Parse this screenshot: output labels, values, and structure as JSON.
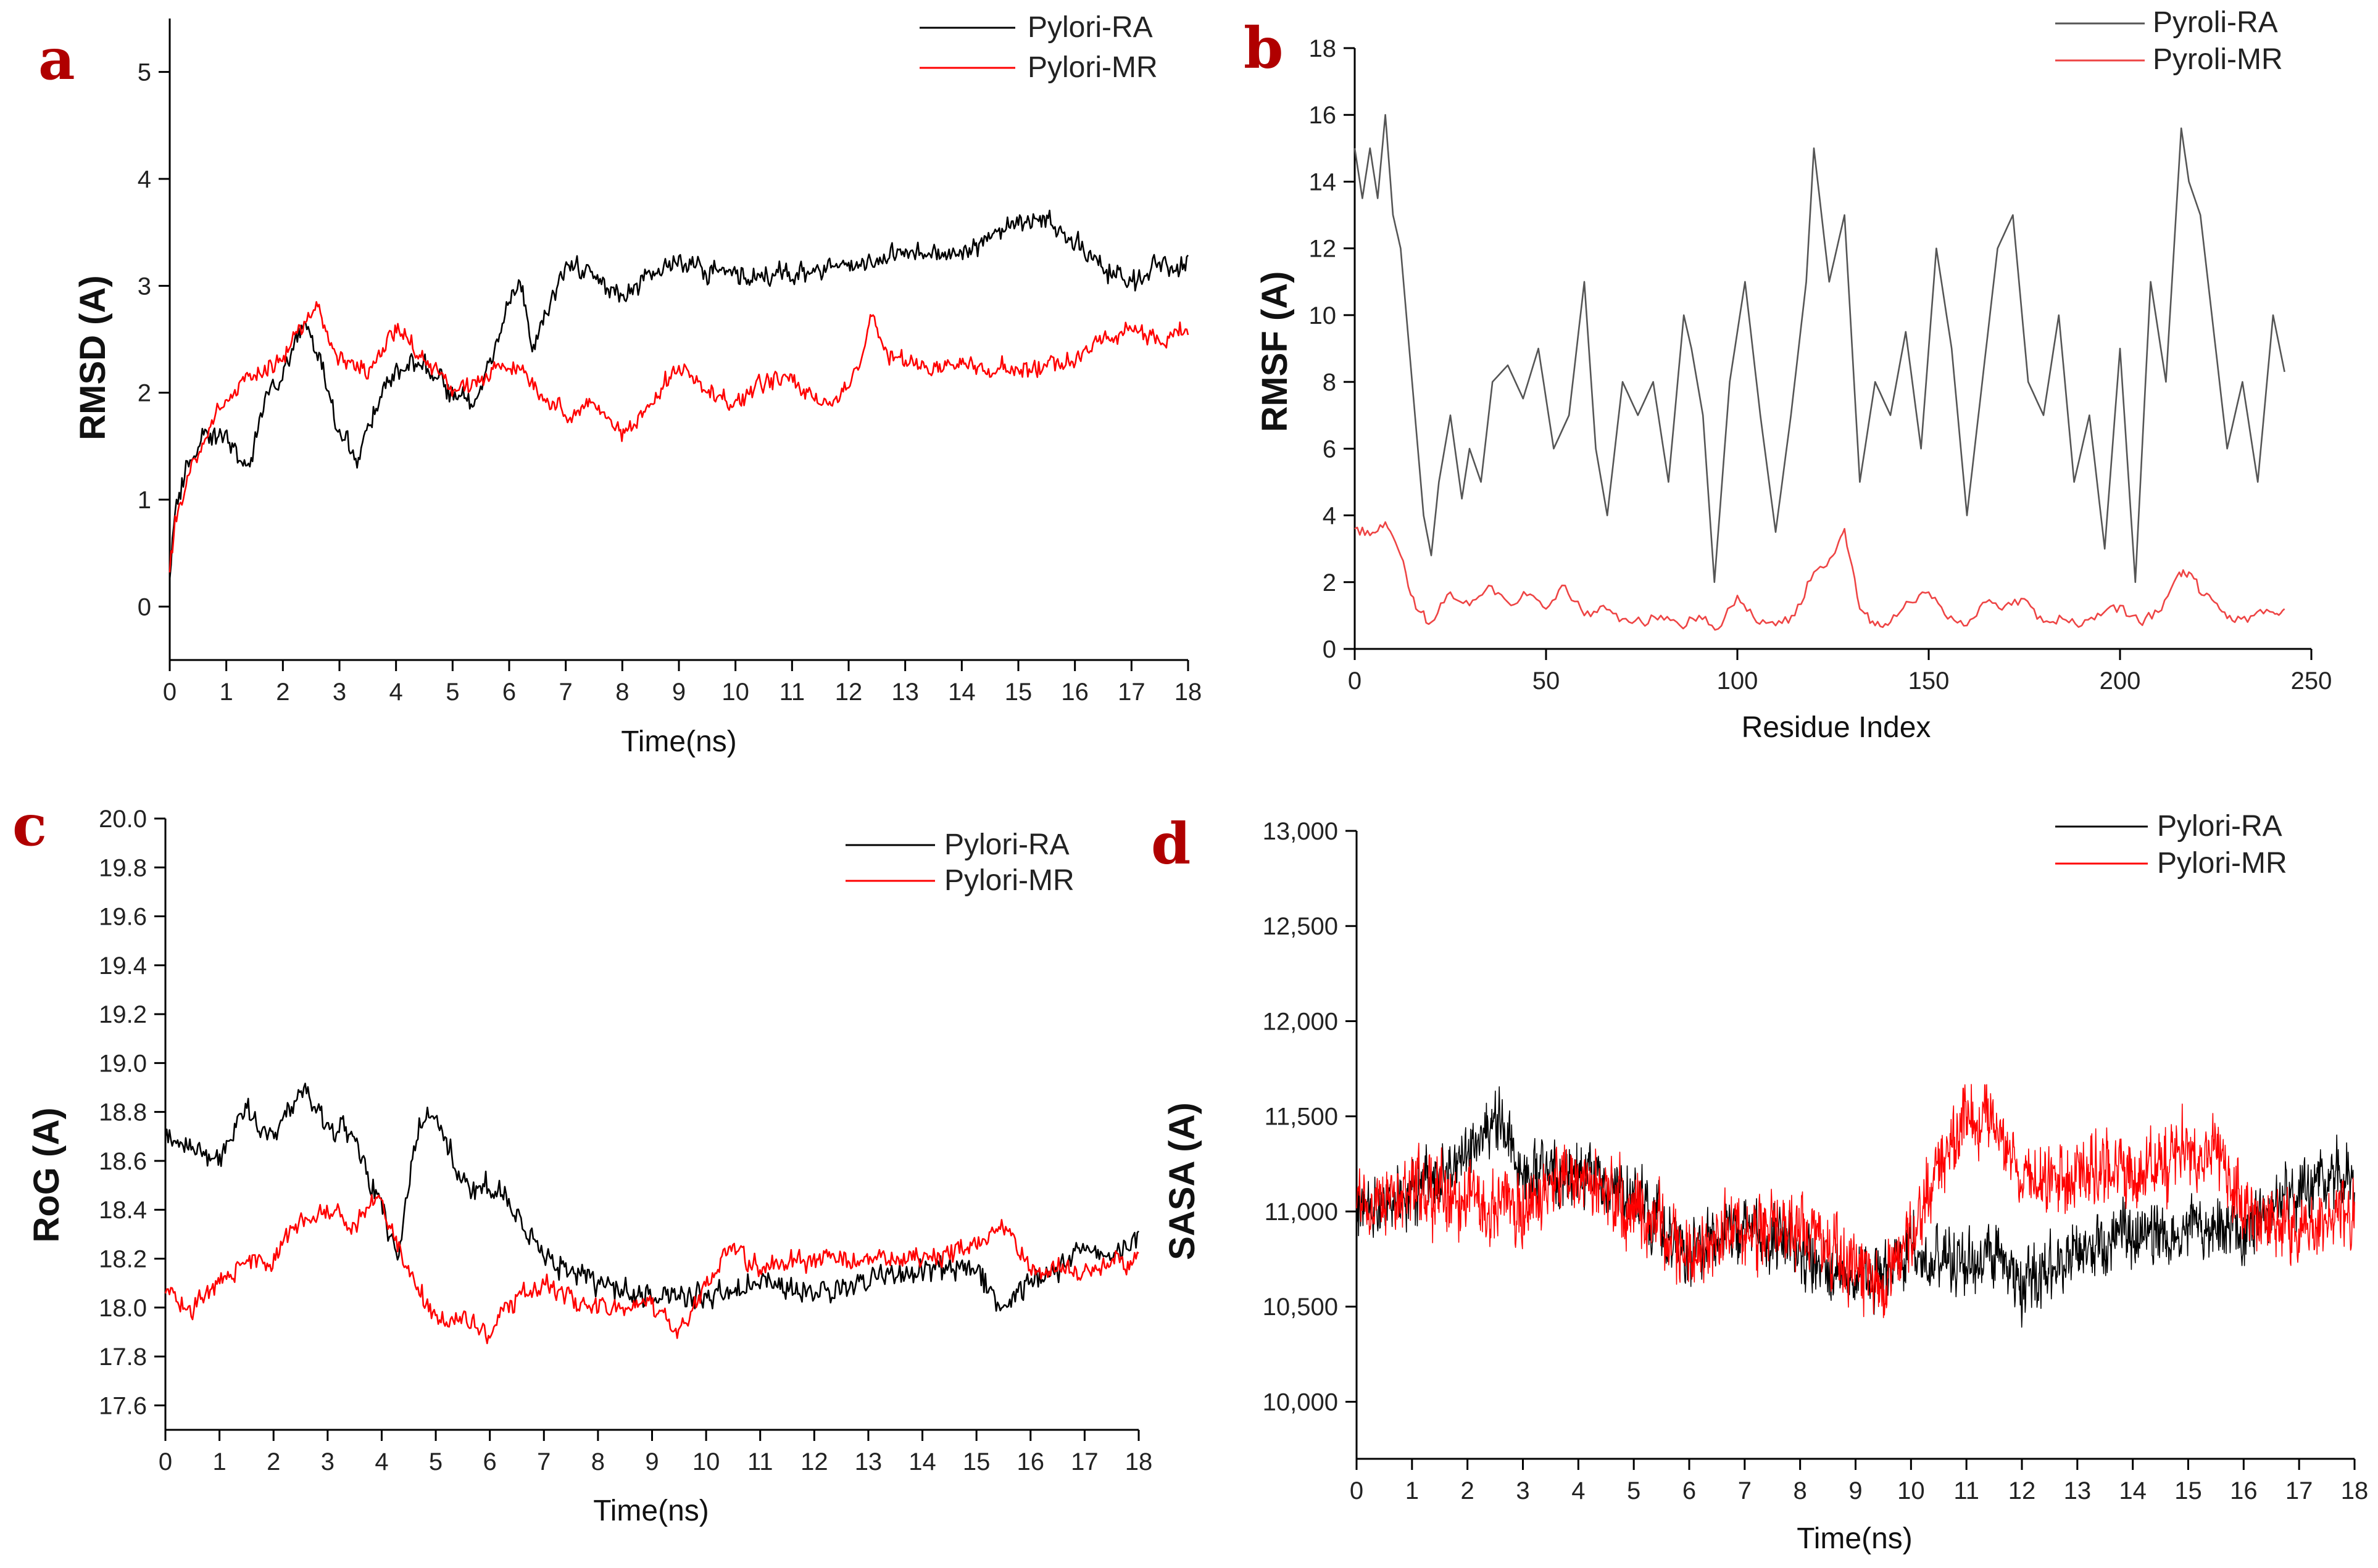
{
  "colors": {
    "ra": "#000000",
    "mr": "#ff0000",
    "ra_light": "#555555",
    "mr_light": "#ee4444",
    "panel_letter": "#b00000"
  },
  "chart_data": [
    {
      "id": "a",
      "type": "line",
      "panel_letter": "a",
      "title": "",
      "xlabel": "Time(ns)",
      "ylabel": "RMSD (A)",
      "xlim": [
        0,
        18
      ],
      "ylim": [
        -0.5,
        5.5
      ],
      "x_ticks": [
        "0",
        "1",
        "2",
        "3",
        "4",
        "5",
        "6",
        "7",
        "8",
        "9",
        "10",
        "11",
        "12",
        "13",
        "14",
        "15",
        "16",
        "17",
        "18"
      ],
      "y_ticks": [
        "0",
        "1",
        "2",
        "3",
        "4",
        "5"
      ],
      "legend": [
        "Pylori-RA",
        "Pylori-MR"
      ],
      "series": [
        {
          "name": "Pylori-RA",
          "color": "#000000",
          "noise": 0.12,
          "seed": 11,
          "x": [
            0,
            0.1,
            0.3,
            0.6,
            1,
            1.4,
            1.7,
            2,
            2.4,
            2.7,
            3,
            3.3,
            3.6,
            4,
            4.4,
            5,
            5.4,
            5.7,
            6,
            6.2,
            6.4,
            6.7,
            7,
            7.5,
            8,
            8.5,
            9,
            10,
            11,
            12,
            13,
            14,
            15,
            15.5,
            16,
            16.5,
            17,
            17.5,
            18
          ],
          "y": [
            0.3,
            0.9,
            1.3,
            1.6,
            1.6,
            1.3,
            2.0,
            2.2,
            2.7,
            2.2,
            1.6,
            1.4,
            1.8,
            2.2,
            2.3,
            2.0,
            1.9,
            2.3,
            2.8,
            3.1,
            2.4,
            2.8,
            3.2,
            3.1,
            2.9,
            3.1,
            3.2,
            3.1,
            3.1,
            3.2,
            3.3,
            3.3,
            3.6,
            3.6,
            3.4,
            3.2,
            3.0,
            3.2,
            3.2
          ]
        },
        {
          "name": "Pylori-MR",
          "color": "#ff0000",
          "noise": 0.1,
          "seed": 23,
          "x": [
            0,
            0.1,
            0.4,
            0.8,
            1.2,
            1.6,
            2,
            2.4,
            2.6,
            3,
            3.5,
            4,
            4.4,
            5,
            5.5,
            6,
            6.5,
            7,
            7.5,
            8,
            8.5,
            9,
            9.5,
            10,
            10.5,
            11,
            11.5,
            12,
            12.4,
            12.8,
            13.5,
            14,
            15,
            16,
            16.5,
            17,
            17.5,
            18
          ],
          "y": [
            0.3,
            0.8,
            1.3,
            1.8,
            2.0,
            2.2,
            2.3,
            2.7,
            2.8,
            2.3,
            2.2,
            2.6,
            2.4,
            2.0,
            2.1,
            2.3,
            2.0,
            1.8,
            1.9,
            1.6,
            1.9,
            2.3,
            2.0,
            1.9,
            2.1,
            2.1,
            1.9,
            2.0,
            2.7,
            2.3,
            2.2,
            2.3,
            2.2,
            2.3,
            2.5,
            2.6,
            2.5,
            2.6
          ]
        }
      ]
    },
    {
      "id": "b",
      "type": "line",
      "panel_letter": "b",
      "title": "",
      "xlabel": "Residue Index",
      "ylabel": "RMSF (A)",
      "xlim": [
        0,
        250
      ],
      "ylim": [
        0,
        18
      ],
      "x_ticks": [
        "0",
        "50",
        "100",
        "150",
        "200",
        "250"
      ],
      "y_ticks": [
        "0",
        "2",
        "4",
        "6",
        "8",
        "10",
        "12",
        "14",
        "16",
        "18"
      ],
      "legend": [
        "Pyroli-RA",
        "Pyroli-MR"
      ],
      "series": [
        {
          "name": "Pyroli-RA",
          "color": "#555555",
          "noise": 0,
          "seed": 0,
          "x": [
            0,
            2,
            4,
            6,
            8,
            10,
            12,
            15,
            18,
            20,
            22,
            25,
            28,
            30,
            33,
            36,
            40,
            44,
            48,
            52,
            56,
            60,
            63,
            66,
            70,
            74,
            78,
            82,
            86,
            88,
            91,
            94,
            98,
            102,
            106,
            110,
            114,
            118,
            120,
            124,
            128,
            132,
            136,
            140,
            144,
            148,
            152,
            156,
            160,
            164,
            168,
            172,
            176,
            180,
            184,
            188,
            192,
            196,
            200,
            204,
            208,
            212,
            216,
            218,
            221,
            224,
            228,
            232,
            236,
            240,
            243
          ],
          "y": [
            15,
            13.5,
            15,
            13.5,
            16,
            13,
            12,
            8,
            4,
            2.8,
            5,
            7,
            4.5,
            6,
            5,
            8,
            8.5,
            7.5,
            9,
            6,
            7,
            11,
            6,
            4,
            8,
            7,
            8,
            5,
            10,
            9,
            7,
            2,
            8,
            11,
            7,
            3.5,
            7,
            11,
            15,
            11,
            13,
            5,
            8,
            7,
            9.5,
            6,
            12,
            9,
            4,
            8,
            12,
            13,
            8,
            7,
            10,
            5,
            7,
            3,
            9,
            2,
            11,
            8,
            15.6,
            14,
            13,
            10,
            6,
            8,
            5,
            10,
            8.3
          ]
        },
        {
          "name": "Pyroli-MR",
          "color": "#ee4444",
          "noise": 0.15,
          "seed": 37,
          "x": [
            0,
            4,
            8,
            12,
            16,
            20,
            25,
            30,
            35,
            40,
            45,
            50,
            55,
            60,
            65,
            70,
            75,
            80,
            85,
            90,
            95,
            100,
            105,
            110,
            115,
            120,
            125,
            128,
            132,
            136,
            140,
            145,
            150,
            155,
            160,
            165,
            170,
            175,
            180,
            185,
            190,
            195,
            200,
            205,
            210,
            215,
            218,
            222,
            226,
            230,
            235,
            240,
            243
          ],
          "y": [
            3.6,
            3.4,
            3.8,
            2.8,
            1.2,
            0.8,
            1.7,
            1.3,
            1.9,
            1.4,
            1.6,
            1.2,
            1.9,
            1.0,
            1.3,
            0.9,
            0.8,
            1.0,
            0.7,
            1.0,
            0.6,
            1.6,
            0.8,
            0.7,
            1.0,
            2.3,
            2.8,
            3.6,
            1.2,
            0.7,
            0.8,
            1.4,
            1.7,
            0.9,
            0.7,
            1.4,
            1.3,
            1.5,
            0.8,
            0.9,
            0.7,
            1.0,
            1.3,
            0.8,
            1.1,
            2.2,
            2.3,
            1.6,
            1.2,
            0.8,
            1.0,
            1.1,
            1.2
          ]
        }
      ]
    },
    {
      "id": "c",
      "type": "line",
      "panel_letter": "c",
      "title": "",
      "xlabel": "Time(ns)",
      "ylabel": "RoG (A)",
      "xlim": [
        0,
        18
      ],
      "ylim": [
        17.5,
        20.0
      ],
      "x_ticks": [
        "0",
        "1",
        "2",
        "3",
        "4",
        "5",
        "6",
        "7",
        "8",
        "9",
        "10",
        "11",
        "12",
        "13",
        "14",
        "15",
        "16",
        "17",
        "18"
      ],
      "y_ticks": [
        "17.6",
        "17.8",
        "18.0",
        "18.2",
        "18.4",
        "18.6",
        "18.8",
        "19.0",
        "19.2",
        "19.4",
        "19.6",
        "19.8",
        "20.0"
      ],
      "legend": [
        "Pylori-RA",
        "Pylori-MR"
      ],
      "series": [
        {
          "name": "Pylori-RA",
          "color": "#000000",
          "noise": 0.06,
          "seed": 51,
          "x": [
            0,
            0.5,
            1,
            1.5,
            2,
            2.5,
            3,
            3.5,
            4,
            4.3,
            4.7,
            5,
            5.5,
            6,
            6.5,
            7,
            7.5,
            8,
            9,
            10,
            11,
            12,
            13,
            14,
            15,
            15.5,
            16,
            16.5,
            17,
            17.5,
            18
          ],
          "y": [
            18.7,
            18.65,
            18.6,
            18.8,
            18.7,
            18.9,
            18.75,
            18.7,
            18.4,
            18.2,
            18.75,
            18.8,
            18.5,
            18.5,
            18.4,
            18.2,
            18.15,
            18.1,
            18.05,
            18.05,
            18.1,
            18.05,
            18.1,
            18.15,
            18.15,
            18.0,
            18.1,
            18.15,
            18.25,
            18.2,
            18.3
          ]
        },
        {
          "name": "Pylori-MR",
          "color": "#ff0000",
          "noise": 0.05,
          "seed": 67,
          "x": [
            0,
            0.5,
            1,
            1.5,
            2,
            2.5,
            3,
            3.5,
            3.9,
            4.2,
            4.6,
            5,
            5.5,
            6,
            6.5,
            7,
            7.5,
            8,
            9,
            9.5,
            10,
            10.5,
            11,
            12,
            13,
            14,
            15,
            15.5,
            16,
            17,
            18
          ],
          "y": [
            18.05,
            18.0,
            18.1,
            18.2,
            18.2,
            18.35,
            18.4,
            18.35,
            18.45,
            18.3,
            18.1,
            17.95,
            17.95,
            17.9,
            18.05,
            18.1,
            18.05,
            18.0,
            18.0,
            17.9,
            18.1,
            18.25,
            18.15,
            18.2,
            18.2,
            18.2,
            18.25,
            18.35,
            18.15,
            18.15,
            18.2
          ]
        }
      ]
    },
    {
      "id": "d",
      "type": "line",
      "panel_letter": "d",
      "title": "",
      "xlabel": "Time(ns)",
      "ylabel": "SASA (A)",
      "xlim": [
        0,
        18
      ],
      "ylim": [
        9700,
        13000
      ],
      "x_ticks": [
        "0",
        "1",
        "2",
        "3",
        "4",
        "5",
        "6",
        "7",
        "8",
        "9",
        "10",
        "11",
        "12",
        "13",
        "14",
        "15",
        "16",
        "17",
        "18"
      ],
      "y_ticks": [
        "10,000",
        "10,500",
        "11,000",
        "11,500",
        "12,000",
        "12,500",
        "13,000"
      ],
      "legend": [
        "Pylori-RA",
        "Pylori-MR"
      ],
      "series": [
        {
          "name": "Pylori-RA",
          "color": "#000000",
          "noise": 190,
          "seed": 83,
          "x": [
            0,
            1,
            2,
            2.5,
            3,
            4,
            5,
            6,
            7,
            8,
            9,
            9.5,
            10,
            11,
            11.5,
            12,
            13,
            14,
            15,
            16,
            17,
            18
          ],
          "y": [
            11000,
            11100,
            11300,
            11500,
            11200,
            11200,
            11100,
            10800,
            10900,
            10800,
            10600,
            10700,
            10800,
            10700,
            10800,
            10600,
            10800,
            10900,
            10900,
            10900,
            11100,
            11200
          ]
        },
        {
          "name": "Pylori-MR",
          "color": "#ff0000",
          "noise": 220,
          "seed": 97,
          "x": [
            0,
            1,
            2,
            3,
            4,
            5,
            6,
            7,
            8,
            9,
            9.5,
            10,
            10.5,
            11,
            11.3,
            12,
            13,
            14,
            15,
            15.5,
            16,
            17,
            18
          ],
          "y": [
            11000,
            11100,
            11100,
            11000,
            11200,
            11000,
            10800,
            10900,
            10900,
            10700,
            10600,
            10900,
            11200,
            11500,
            11500,
            11200,
            11200,
            11200,
            11300,
            11300,
            11000,
            10900,
            11000
          ]
        }
      ]
    }
  ]
}
